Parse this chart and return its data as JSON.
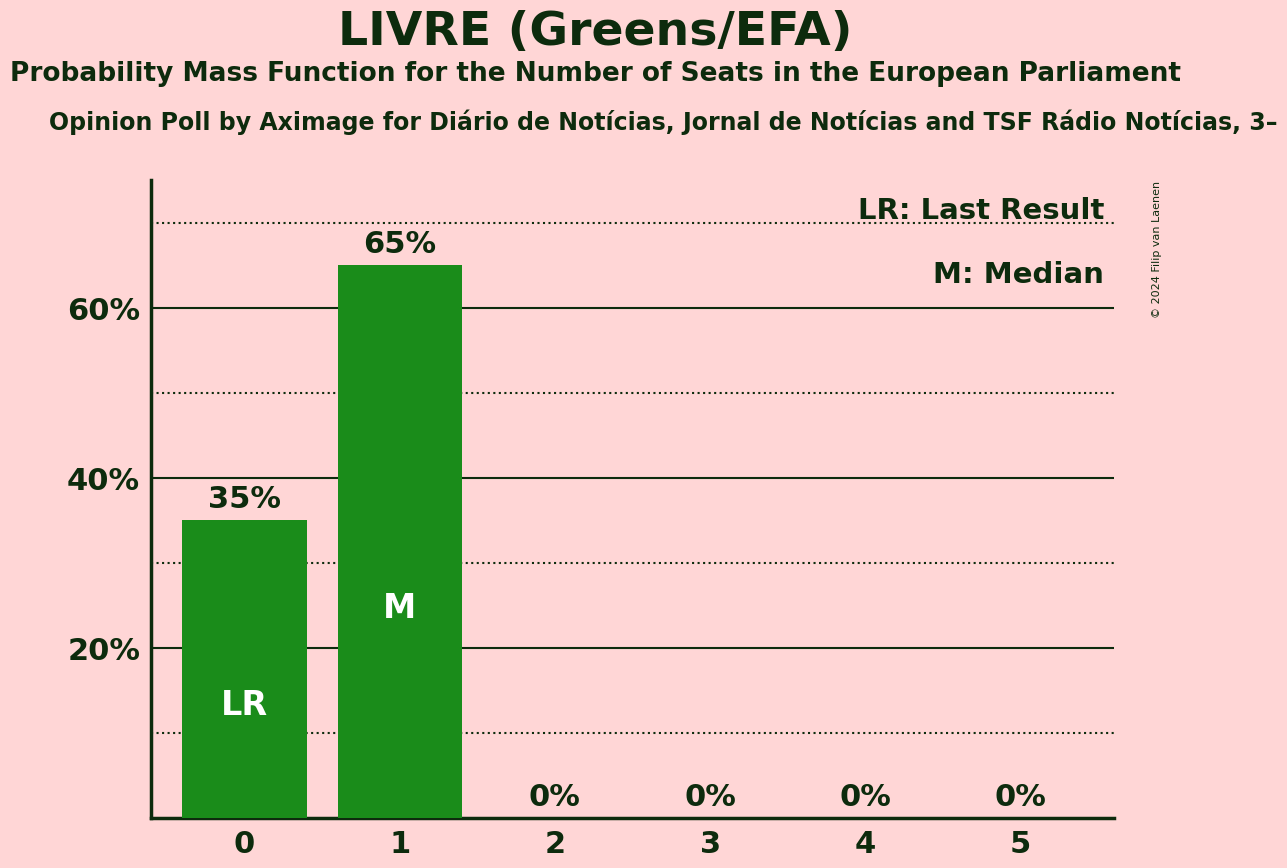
{
  "title": "LIVRE (Greens/EFA)",
  "subtitle": "Probability Mass Function for the Number of Seats in the European Parliament",
  "poll_line": "Opinion Poll by Aximage for Diário de Notícias, Jornal de Notícias and TSF Rádio Notícias, 3–",
  "copyright": "© 2024 Filip van Laenen",
  "categories": [
    0,
    1,
    2,
    3,
    4,
    5
  ],
  "values": [
    0.35,
    0.65,
    0.0,
    0.0,
    0.0,
    0.0
  ],
  "bar_color": "#1a8c1a",
  "bar_annotations": [
    "LR",
    "M",
    "",
    "",
    "",
    ""
  ],
  "bar_label_values": [
    "35%",
    "65%",
    "0%",
    "0%",
    "0%",
    "0%"
  ],
  "background_color": "#ffd6d6",
  "text_color": "#0d2b0d",
  "ylim": [
    0,
    0.75
  ],
  "yticks": [
    0.0,
    0.2,
    0.4,
    0.6
  ],
  "ytick_labels": [
    "",
    "20%",
    "40%",
    "60%"
  ],
  "dotted_lines": [
    0.1,
    0.3,
    0.5,
    0.7
  ],
  "solid_lines": [
    0.2,
    0.4,
    0.6
  ],
  "legend_lr": "LR: Last Result",
  "legend_m": "M: Median",
  "title_fontsize": 34,
  "subtitle_fontsize": 19,
  "poll_fontsize": 17,
  "tick_fontsize": 22,
  "annotation_fontsize": 24,
  "bar_label_fontsize": 22,
  "legend_fontsize": 21
}
